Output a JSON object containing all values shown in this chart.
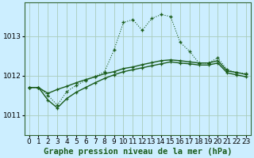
{
  "title": "Graphe pression niveau de la mer (hPa)",
  "bg_color": "#cceeff",
  "grid_color": "#aaccbb",
  "line_color": "#1a5c1a",
  "xlim": [
    -0.5,
    23.5
  ],
  "ylim": [
    1010.5,
    1013.85
  ],
  "yticks": [
    1011,
    1012,
    1013
  ],
  "xticks": [
    0,
    1,
    2,
    3,
    4,
    5,
    6,
    7,
    8,
    9,
    10,
    11,
    12,
    13,
    14,
    15,
    16,
    17,
    18,
    19,
    20,
    21,
    22,
    23
  ],
  "line1_x": [
    0,
    1,
    2,
    3,
    4,
    5,
    6,
    7,
    8,
    9,
    10,
    11,
    12,
    13,
    14,
    15,
    16,
    17,
    18,
    19,
    20,
    21,
    22,
    23
  ],
  "line1_y": [
    1011.7,
    1011.7,
    1011.5,
    1011.25,
    1011.6,
    1011.75,
    1011.88,
    1011.98,
    1012.1,
    1012.65,
    1013.35,
    1013.42,
    1013.15,
    1013.45,
    1013.55,
    1013.5,
    1012.85,
    1012.62,
    1012.32,
    1012.32,
    1012.45,
    1012.15,
    1012.08,
    1012.05
  ],
  "line2_x": [
    0,
    1,
    2,
    3,
    4,
    5,
    6,
    7,
    8,
    9,
    10,
    11,
    12,
    13,
    14,
    15,
    16,
    17,
    18,
    19,
    20,
    21,
    22,
    23
  ],
  "line2_y": [
    1011.7,
    1011.7,
    1011.55,
    1011.65,
    1011.73,
    1011.82,
    1011.9,
    1011.97,
    1012.05,
    1012.1,
    1012.18,
    1012.22,
    1012.28,
    1012.33,
    1012.38,
    1012.4,
    1012.38,
    1012.35,
    1012.32,
    1012.32,
    1012.38,
    1012.12,
    1012.08,
    1012.03
  ],
  "line3_x": [
    0,
    1,
    2,
    3,
    4,
    5,
    6,
    7,
    8,
    9,
    10,
    11,
    12,
    13,
    14,
    15,
    16,
    17,
    18,
    19,
    20,
    21,
    22,
    23
  ],
  "line3_y": [
    1011.7,
    1011.7,
    1011.38,
    1011.18,
    1011.42,
    1011.58,
    1011.7,
    1011.82,
    1011.93,
    1012.02,
    1012.1,
    1012.15,
    1012.2,
    1012.25,
    1012.3,
    1012.35,
    1012.32,
    1012.3,
    1012.27,
    1012.27,
    1012.32,
    1012.07,
    1012.02,
    1011.97
  ],
  "tick_fontsize": 6.5,
  "title_fontsize": 7.5
}
